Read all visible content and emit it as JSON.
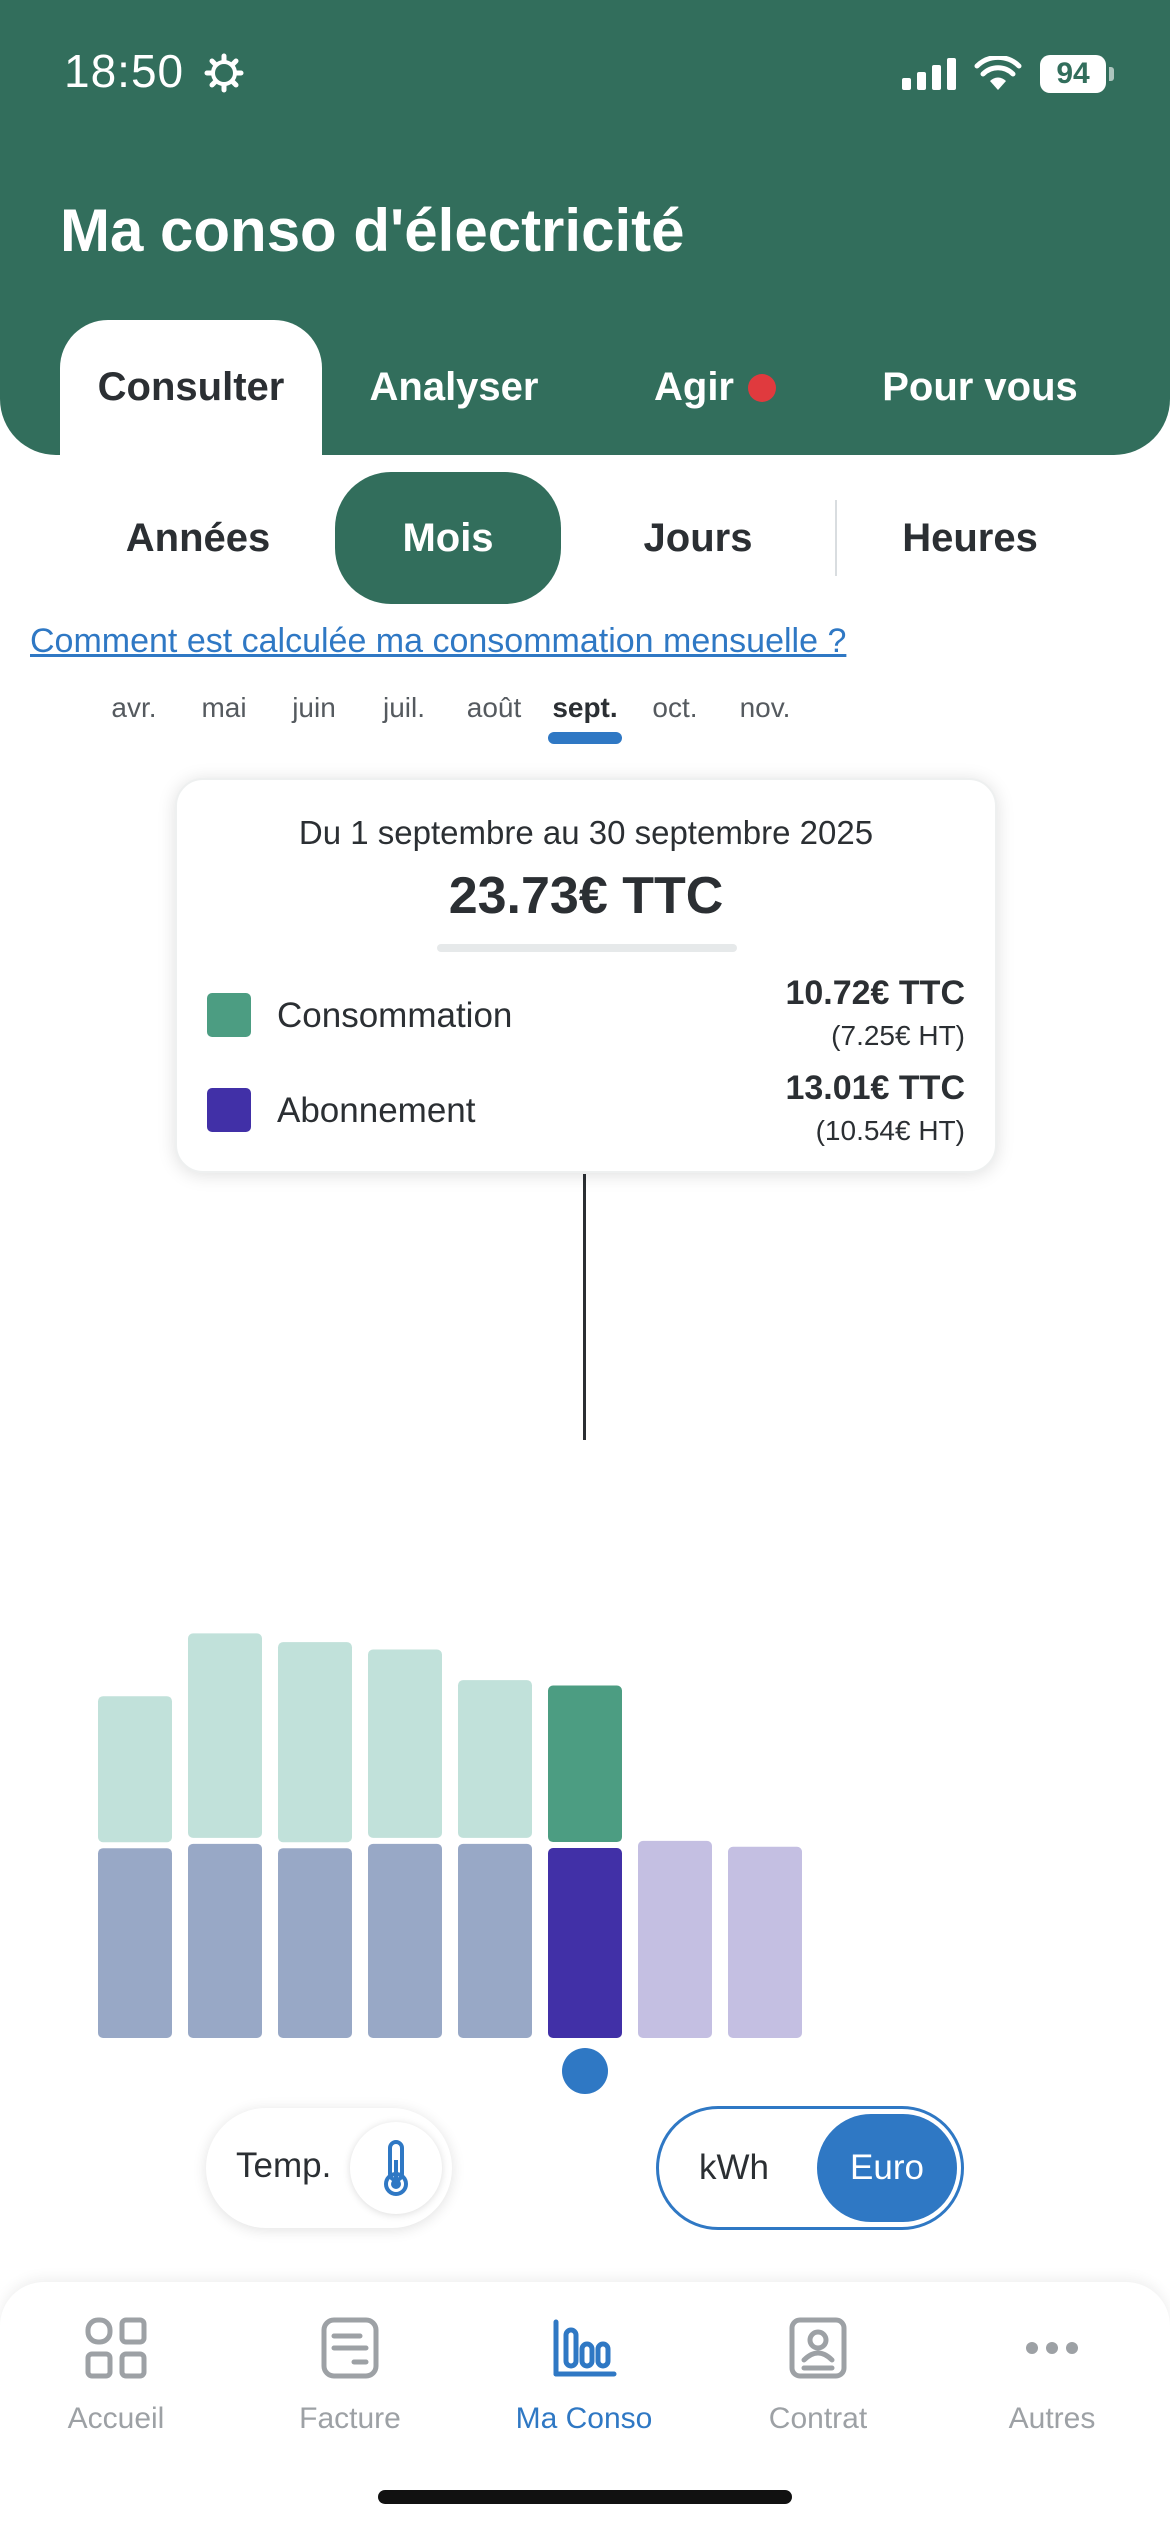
{
  "status_bar": {
    "time": "18:50",
    "battery": "94"
  },
  "header": {
    "title": "Ma conso d'électricité"
  },
  "top_tabs": [
    {
      "label": "Consulter",
      "active": true
    },
    {
      "label": "Analyser",
      "active": false
    },
    {
      "label": "Agir",
      "active": false,
      "badge_color": "#e03a3e"
    },
    {
      "label": "Pour vous",
      "active": false
    }
  ],
  "period_segments": [
    {
      "label": "Années",
      "active": false
    },
    {
      "label": "Mois",
      "active": true
    },
    {
      "label": "Jours",
      "active": false
    },
    {
      "label": "Heures",
      "active": false
    }
  ],
  "help_link": "Comment est calculée ma consommation mensuelle ?",
  "tooltip": {
    "period": "Du 1 septembre au 30 septembre 2025",
    "total": "23.73€ TTC",
    "consommation": {
      "label": "Consommation",
      "ttc": "10.72€ TTC",
      "ht": "(7.25€ HT)",
      "color": "#4c9d82"
    },
    "abonnement": {
      "label": "Abonnement",
      "ttc": "13.01€ TTC",
      "ht": "(10.54€ HT)",
      "color": "#4130a7"
    }
  },
  "chart_data": {
    "type": "bar",
    "stacked": true,
    "categories": [
      "avr.",
      "mai",
      "juin",
      "juil.",
      "août",
      "sept.",
      "oct.",
      "nov."
    ],
    "selected": "sept.",
    "series": [
      {
        "name": "Abonnement",
        "values": [
          13.0,
          13.3,
          13.0,
          13.3,
          13.3,
          13.01,
          13.5,
          13.1
        ]
      },
      {
        "name": "Consommation",
        "values": [
          10.0,
          14.0,
          13.7,
          12.9,
          10.8,
          10.72,
          0,
          0
        ]
      }
    ],
    "colors": {
      "abonnement_past": "#98a8c6",
      "consommation_past": "#c1e1da",
      "abonnement_selected": "#4130a7",
      "consommation_selected": "#4c9d82",
      "future": "#c4bfe2"
    },
    "future_months": [
      "oct.",
      "nov."
    ]
  },
  "toggles": {
    "temp_label": "Temp.",
    "unit_kwh": "kWh",
    "unit_euro": "Euro",
    "unit_selected": "Euro"
  },
  "bottom_nav": [
    {
      "label": "Accueil",
      "icon": "grid-icon"
    },
    {
      "label": "Facture",
      "icon": "invoice-icon"
    },
    {
      "label": "Ma Conso",
      "icon": "bar-chart-icon",
      "active": true
    },
    {
      "label": "Contrat",
      "icon": "contract-icon"
    },
    {
      "label": "Autres",
      "icon": "more-icon"
    }
  ],
  "accent_color": "#2f78c4",
  "brand_color": "#326e5c"
}
